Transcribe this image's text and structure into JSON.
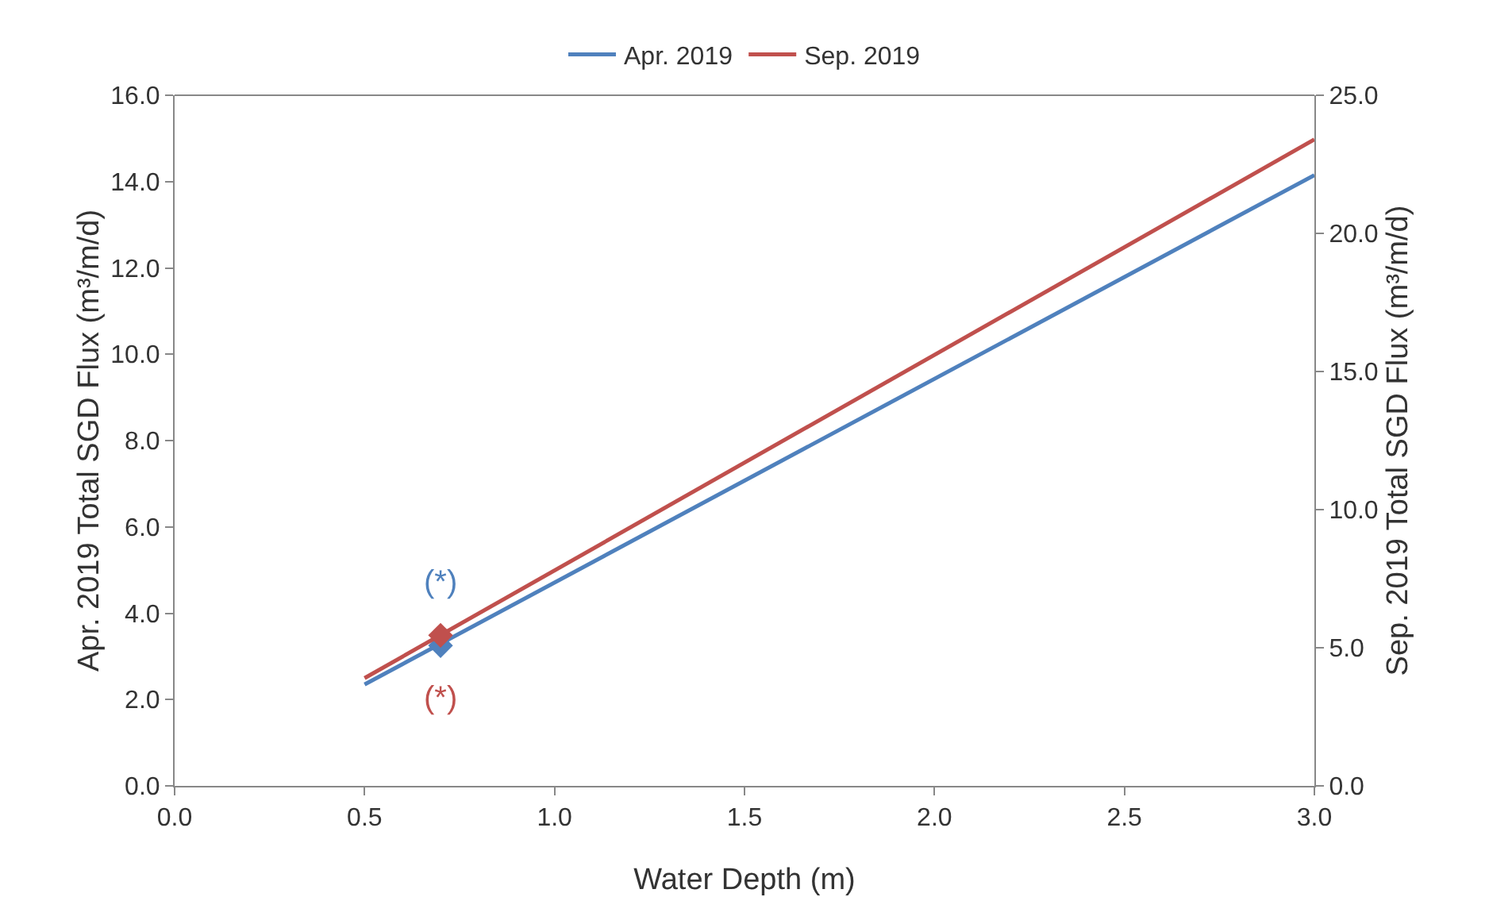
{
  "chart_data": {
    "type": "line",
    "xlabel": "Water Depth (m)",
    "ylabel": "Apr. 2019 Total SGD Flux (m³/m/d)",
    "y2label": "Sep. 2019 Total SGD Flux (m³/m/d)",
    "xlim": [
      0,
      3
    ],
    "xticks": [
      {
        "value": 0,
        "label": "0.0"
      },
      {
        "value": 0.5,
        "label": "0.5"
      },
      {
        "value": 1,
        "label": "1.0"
      },
      {
        "value": 1.5,
        "label": "1.5"
      },
      {
        "value": 2,
        "label": "2.0"
      },
      {
        "value": 2.5,
        "label": "2.5"
      },
      {
        "value": 3,
        "label": "3.0"
      }
    ],
    "ylim": [
      0,
      16
    ],
    "yticks": [
      {
        "value": 0,
        "label": "0.0"
      },
      {
        "value": 2,
        "label": "2.0"
      },
      {
        "value": 4,
        "label": "4.0"
      },
      {
        "value": 6,
        "label": "6.0"
      },
      {
        "value": 8,
        "label": "8.0"
      },
      {
        "value": 10,
        "label": "10.0"
      },
      {
        "value": 12,
        "label": "12.0"
      },
      {
        "value": 14,
        "label": "14.0"
      },
      {
        "value": 16,
        "label": "16.0"
      }
    ],
    "y2lim": [
      0,
      25
    ],
    "y2ticks": [
      {
        "value": 0,
        "label": "0.0"
      },
      {
        "value": 5,
        "label": "5.0"
      },
      {
        "value": 10,
        "label": "10.0"
      },
      {
        "value": 15,
        "label": "15.0"
      },
      {
        "value": 20,
        "label": "20.0"
      },
      {
        "value": 25,
        "label": "25.0"
      }
    ],
    "series": [
      {
        "name": "Apr. 2019",
        "color": "#4f81bd",
        "x": [
          0.5,
          3.0
        ],
        "values": [
          2.35,
          14.15
        ]
      },
      {
        "name": "Sep. 2019",
        "color": "#c0504d",
        "axis": "y2",
        "x": [
          0.5,
          3.0
        ],
        "values": [
          3.9,
          23.4
        ]
      },
      {
        "type": "scatter",
        "marker": "diamond",
        "color": "#4f81bd",
        "x": [
          0.7
        ],
        "values": [
          3.25
        ]
      },
      {
        "type": "scatter",
        "marker": "diamond",
        "color": "#c0504d",
        "axis": "y2",
        "x": [
          0.7
        ],
        "values": [
          5.45
        ]
      }
    ],
    "annotations": [
      "(*)",
      "(*)"
    ],
    "legend": "top",
    "grid": false
  }
}
